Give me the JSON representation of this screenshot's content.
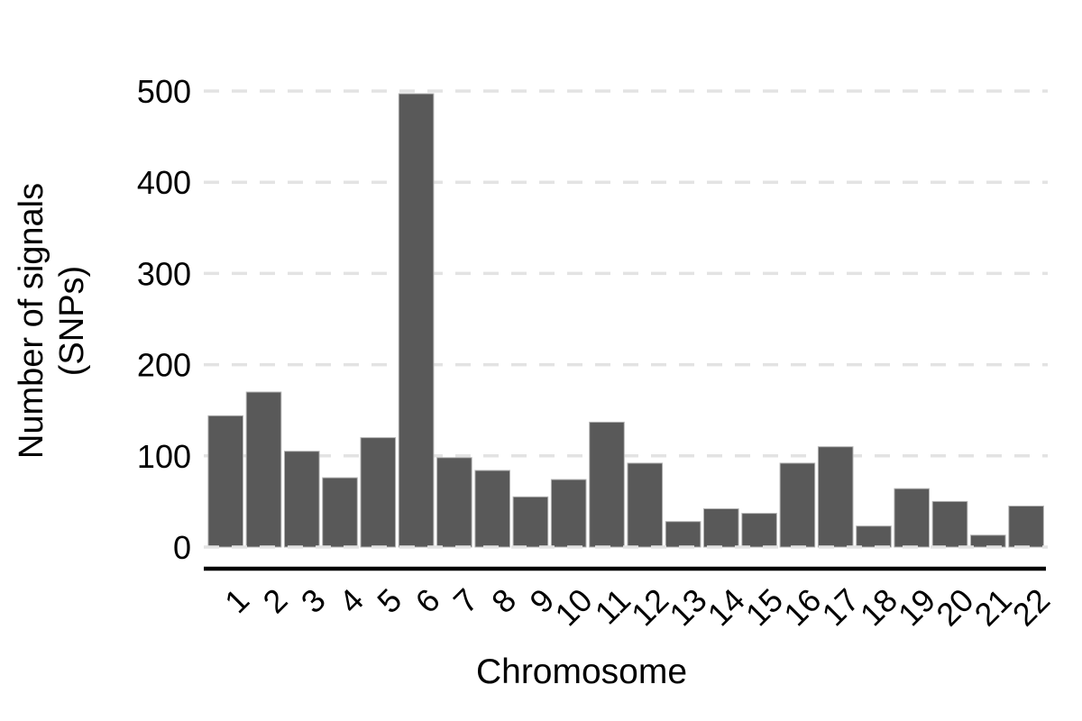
{
  "figure": {
    "background": "#ffffff"
  },
  "chart_data": {
    "type": "bar",
    "title": "",
    "xlabel": "Chromosome",
    "ylabel_lines": [
      "Number of signals",
      "(SNPs)"
    ],
    "categories": [
      "1",
      "2",
      "3",
      "4",
      "5",
      "6",
      "7",
      "8",
      "9",
      "10",
      "11",
      "12",
      "13",
      "14",
      "15",
      "16",
      "17",
      "18",
      "19",
      "20",
      "21",
      "22"
    ],
    "values": [
      144,
      170,
      105,
      76,
      120,
      497,
      98,
      84,
      55,
      74,
      137,
      92,
      28,
      42,
      37,
      92,
      110,
      23,
      64,
      50,
      13,
      45
    ],
    "ylim": [
      0,
      500
    ],
    "yticks": [
      0,
      100,
      200,
      300,
      400,
      500
    ],
    "grid": {
      "horizontal_major": true,
      "style": "dashed",
      "color": "#e3e3e3"
    },
    "legend_position": "none",
    "bar_fill": "#595959",
    "bar_stroke": "#b3b3b3",
    "axis_line_color": "#000000",
    "text_color": "#000000"
  }
}
